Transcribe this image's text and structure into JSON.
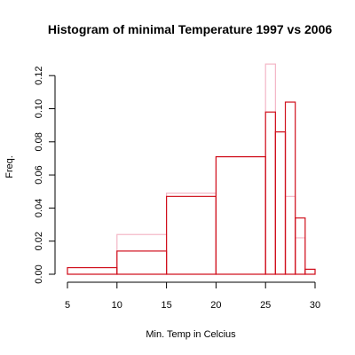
{
  "chart_data": {
    "type": "histogram",
    "title": "Histogram of minimal Temperature 1997 vs 2006",
    "xlabel": "Min. Temp in Celcius",
    "ylabel": "Freq.",
    "xlim": [
      5,
      30
    ],
    "ylim": [
      0,
      0.127
    ],
    "x_ticks": [
      "5",
      "10",
      "15",
      "20",
      "25",
      "30"
    ],
    "y_ticks": [
      "0.00",
      "0.02",
      "0.04",
      "0.06",
      "0.08",
      "0.10",
      "0.12"
    ],
    "grid": false,
    "legend": "none",
    "series": [
      {
        "color": "#f4b6c6",
        "bins": [
          {
            "from": 5,
            "to": 10,
            "density": 0.004
          },
          {
            "from": 10,
            "to": 15,
            "density": 0.024
          },
          {
            "from": 15,
            "to": 20,
            "density": 0.049
          },
          {
            "from": 20,
            "to": 25,
            "density": 0.071
          },
          {
            "from": 25,
            "to": 26,
            "density": 0.127
          },
          {
            "from": 26,
            "to": 27,
            "density": 0.086
          },
          {
            "from": 27,
            "to": 28,
            "density": 0.047
          },
          {
            "from": 28,
            "to": 29,
            "density": 0.022
          },
          {
            "from": 29,
            "to": 30,
            "density": 0.003
          }
        ]
      },
      {
        "color": "#d0101c",
        "bins": [
          {
            "from": 5,
            "to": 10,
            "density": 0.004
          },
          {
            "from": 10,
            "to": 15,
            "density": 0.014
          },
          {
            "from": 15,
            "to": 20,
            "density": 0.047
          },
          {
            "from": 20,
            "to": 25,
            "density": 0.071
          },
          {
            "from": 25,
            "to": 26,
            "density": 0.098
          },
          {
            "from": 26,
            "to": 27,
            "density": 0.086
          },
          {
            "from": 27,
            "to": 28,
            "density": 0.104
          },
          {
            "from": 28,
            "to": 29,
            "density": 0.034
          },
          {
            "from": 29,
            "to": 30,
            "density": 0.003
          }
        ]
      }
    ]
  }
}
